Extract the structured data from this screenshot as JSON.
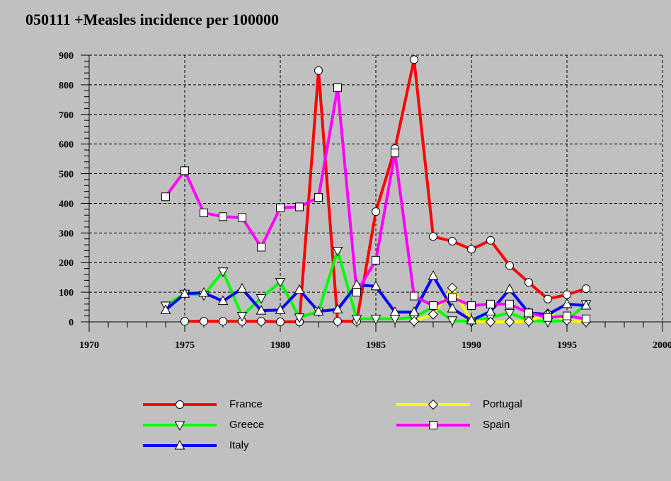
{
  "chart_data": {
    "type": "line",
    "title": "050111 +Measles incidence per 100000",
    "xlabel": "",
    "ylabel": "",
    "xlim": [
      1970,
      2000
    ],
    "ylim": [
      0,
      900
    ],
    "x_ticks": [
      "1970",
      "1975",
      "1980",
      "1985",
      "1990",
      "1995",
      "2000"
    ],
    "y_ticks": [
      "0",
      "100",
      "200",
      "300",
      "400",
      "500",
      "600",
      "700",
      "800",
      "900"
    ],
    "grid": true,
    "legend_position": "bottom",
    "series": [
      {
        "name": "France",
        "color": "#ff0000",
        "marker": "circle",
        "points": [
          [
            1975,
            2
          ],
          [
            1976,
            2
          ],
          [
            1977,
            2
          ],
          [
            1978,
            2
          ],
          [
            1979,
            2
          ],
          [
            1980,
            0
          ],
          [
            1981,
            0
          ],
          [
            1982,
            848
          ],
          [
            1983,
            2
          ],
          [
            1984,
            2
          ],
          [
            1985,
            372
          ],
          [
            1986,
            585
          ],
          [
            1987,
            885
          ],
          [
            1988,
            288
          ],
          [
            1989,
            272
          ],
          [
            1990,
            245
          ],
          [
            1991,
            275
          ],
          [
            1992,
            190
          ],
          [
            1993,
            133
          ],
          [
            1994,
            77
          ],
          [
            1995,
            92
          ],
          [
            1996,
            112
          ]
        ]
      },
      {
        "name": "Greece",
        "color": "#00ff00",
        "marker": "triangle-down",
        "points": [
          [
            1974,
            55
          ],
          [
            1975,
            95
          ],
          [
            1976,
            90
          ],
          [
            1977,
            170
          ],
          [
            1978,
            20
          ],
          [
            1979,
            80
          ],
          [
            1980,
            135
          ],
          [
            1981,
            15
          ],
          [
            1982,
            35
          ],
          [
            1983,
            240
          ],
          [
            1984,
            10
          ],
          [
            1985,
            10
          ],
          [
            1986,
            10
          ],
          [
            1987,
            15
          ],
          [
            1988,
            50
          ],
          [
            1989,
            5
          ],
          [
            1990,
            0
          ],
          [
            1991,
            15
          ],
          [
            1992,
            30
          ],
          [
            1993,
            5
          ],
          [
            1994,
            0
          ],
          [
            1995,
            5
          ],
          [
            1996,
            60
          ]
        ]
      },
      {
        "name": "Italy",
        "color": "#0000ff",
        "marker": "triangle-up",
        "points": [
          [
            1974,
            40
          ],
          [
            1975,
            95
          ],
          [
            1976,
            98
          ],
          [
            1977,
            70
          ],
          [
            1978,
            112
          ],
          [
            1979,
            38
          ],
          [
            1980,
            40
          ],
          [
            1981,
            108
          ],
          [
            1982,
            35
          ],
          [
            1983,
            42
          ],
          [
            1984,
            125
          ],
          [
            1985,
            120
          ],
          [
            1986,
            33
          ],
          [
            1987,
            33
          ],
          [
            1988,
            155
          ],
          [
            1989,
            45
          ],
          [
            1990,
            5
          ],
          [
            1991,
            35
          ],
          [
            1992,
            110
          ],
          [
            1993,
            30
          ],
          [
            1994,
            25
          ],
          [
            1995,
            60
          ],
          [
            1996,
            55
          ]
        ]
      },
      {
        "name": "Portugal",
        "color": "#ffff00",
        "marker": "diamond",
        "points": [
          [
            1987,
            2
          ],
          [
            1988,
            25
          ],
          [
            1989,
            115
          ],
          [
            1990,
            2
          ],
          [
            1991,
            0
          ],
          [
            1992,
            0
          ],
          [
            1993,
            2
          ],
          [
            1994,
            28
          ],
          [
            1995,
            5
          ],
          [
            1996,
            0
          ]
        ]
      },
      {
        "name": "Spain",
        "color": "#ff00ff",
        "marker": "square",
        "points": [
          [
            1974,
            422
          ],
          [
            1975,
            510
          ],
          [
            1976,
            368
          ],
          [
            1977,
            355
          ],
          [
            1978,
            352
          ],
          [
            1979,
            252
          ],
          [
            1980,
            385
          ],
          [
            1981,
            388
          ],
          [
            1982,
            420
          ],
          [
            1983,
            790
          ],
          [
            1984,
            100
          ],
          [
            1985,
            208
          ],
          [
            1986,
            570
          ],
          [
            1987,
            87
          ],
          [
            1988,
            55
          ],
          [
            1989,
            82
          ],
          [
            1990,
            55
          ],
          [
            1991,
            60
          ],
          [
            1992,
            60
          ],
          [
            1993,
            30
          ],
          [
            1994,
            15
          ],
          [
            1995,
            20
          ],
          [
            1996,
            10
          ]
        ]
      }
    ]
  },
  "legend": [
    {
      "name": "France",
      "marker": "circle",
      "color": "#ff0000"
    },
    {
      "name": "Greece",
      "marker": "triangle-down",
      "color": "#00ff00"
    },
    {
      "name": "Italy",
      "marker": "triangle-up",
      "color": "#0000ff"
    },
    {
      "name": "Portugal",
      "marker": "diamond",
      "color": "#ffff00"
    },
    {
      "name": "Spain",
      "marker": "square",
      "color": "#ff00ff"
    }
  ]
}
